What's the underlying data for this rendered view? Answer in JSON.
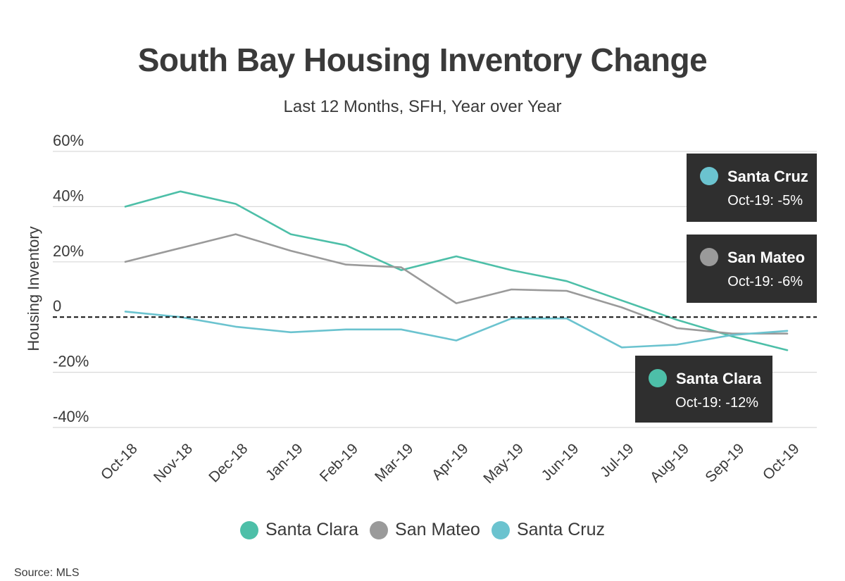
{
  "chart_data": {
    "type": "line",
    "title": "South Bay Housing Inventory Change",
    "subtitle": "Last 12 Months, SFH, Year over Year",
    "ylabel": "Housing Inventory",
    "xlabel": "",
    "ylim": [
      -40,
      60
    ],
    "yticks": [
      60,
      40,
      20,
      0,
      -20,
      -40
    ],
    "ytick_labels": [
      "60%",
      "40%",
      "20%",
      "0",
      "-20%",
      "-40%"
    ],
    "categories": [
      "Oct-18",
      "Nov-18",
      "Dec-18",
      "Jan-19",
      "Feb-19",
      "Mar-19",
      "Apr-19",
      "May-19",
      "Jun-19",
      "Jul-19",
      "Aug-19",
      "Sep-19",
      "Oct-19"
    ],
    "series": [
      {
        "name": "Santa Clara",
        "color": "#4dbfa8",
        "values": [
          40,
          45.5,
          41,
          30,
          26,
          17,
          22,
          17,
          13,
          6,
          -1,
          -7,
          -12
        ]
      },
      {
        "name": "San Mateo",
        "color": "#9a9a9a",
        "values": [
          20,
          25,
          30,
          24,
          19,
          18,
          5,
          10,
          9.5,
          3.5,
          -4,
          -6,
          -6
        ]
      },
      {
        "name": "Santa Cruz",
        "color": "#6bc3cf",
        "values": [
          2,
          0,
          -3.5,
          -5.5,
          -4.5,
          -4.5,
          -8.5,
          -0.5,
          -0.5,
          -11,
          -10,
          -6.5,
          -5
        ]
      }
    ],
    "grid": true,
    "legend": "bottom",
    "zero_line": "dashed",
    "callouts": [
      {
        "series": "Santa Cruz",
        "name": "Santa Cruz",
        "value_text": "Oct-19: -5%",
        "color": "#6bc3cf"
      },
      {
        "series": "San Mateo",
        "name": "San Mateo",
        "value_text": "Oct-19: -6%",
        "color": "#9a9a9a"
      },
      {
        "series": "Santa Clara",
        "name": "Santa Clara",
        "value_text": "Oct-19: -12%",
        "color": "#4dbfa8"
      }
    ],
    "source": "Source:  MLS"
  }
}
